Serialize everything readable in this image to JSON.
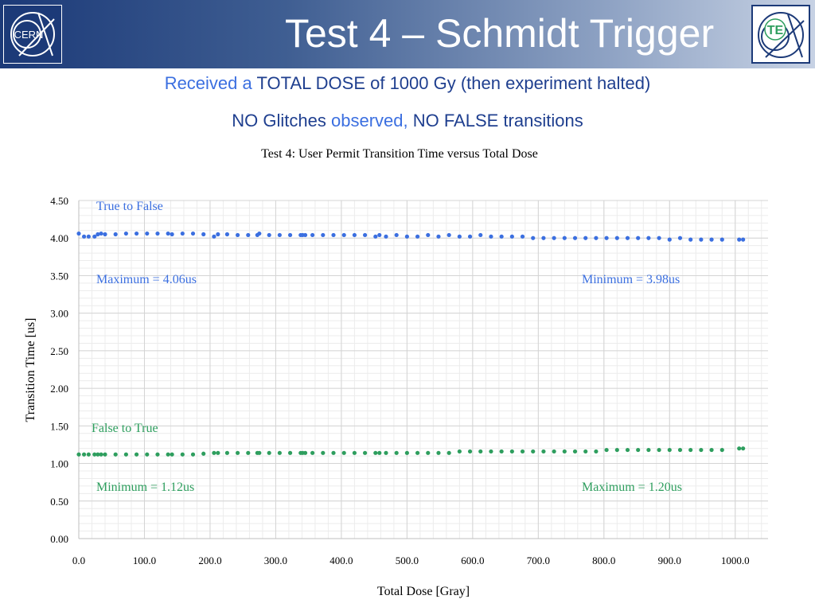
{
  "slide": {
    "title": "Test 4 – Schmidt Trigger",
    "line1": {
      "accent": "Received a",
      "rest": " TOTAL DOSE of 1000 Gy (then experiment halted)"
    },
    "line2": {
      "part1": "NO Glitches ",
      "accent": "observed,",
      "part2": " NO FALSE transitions"
    },
    "logos": {
      "left": "CERN",
      "right": "TE"
    }
  },
  "colors": {
    "blue_series": "#3b6fe0",
    "green_series": "#2e9e5e",
    "title_text": "#1f3f8f",
    "accent_text": "#3b6fe0"
  },
  "chart_data": {
    "type": "scatter",
    "title": "Test 4: User Permit Transition Time versus Total Dose",
    "xlabel": "Total Dose [Gray]",
    "ylabel": "Transition Time [us]",
    "xlim": [
      0,
      1050
    ],
    "ylim": [
      0,
      4.5
    ],
    "xticks": [
      "0.0",
      "100.0",
      "200.0",
      "300.0",
      "400.0",
      "500.0",
      "600.0",
      "700.0",
      "800.0",
      "900.0",
      "1000.0"
    ],
    "yticks": [
      "0.00",
      "0.50",
      "1.00",
      "1.50",
      "2.00",
      "2.50",
      "3.00",
      "3.50",
      "4.00",
      "4.50"
    ],
    "grid": true,
    "series": [
      {
        "name": "True to False",
        "color": "#3b6fe0",
        "x": [
          0,
          8,
          15,
          24,
          29,
          34,
          40,
          56,
          72,
          88,
          104,
          120,
          136,
          142,
          158,
          174,
          190,
          206,
          212,
          226,
          242,
          258,
          272,
          275,
          290,
          306,
          322,
          338,
          341,
          345,
          356,
          372,
          388,
          404,
          420,
          436,
          452,
          458,
          468,
          484,
          500,
          516,
          532,
          548,
          564,
          580,
          596,
          612,
          628,
          644,
          660,
          676,
          692,
          708,
          724,
          740,
          756,
          772,
          788,
          804,
          820,
          836,
          852,
          868,
          884,
          900,
          916,
          932,
          948,
          964,
          980,
          1006,
          1012
        ],
        "y": [
          4.06,
          4.02,
          4.02,
          4.02,
          4.05,
          4.06,
          4.05,
          4.05,
          4.06,
          4.06,
          4.06,
          4.06,
          4.06,
          4.05,
          4.06,
          4.06,
          4.05,
          4.02,
          4.05,
          4.05,
          4.04,
          4.04,
          4.04,
          4.06,
          4.04,
          4.04,
          4.04,
          4.04,
          4.04,
          4.04,
          4.04,
          4.04,
          4.04,
          4.04,
          4.04,
          4.04,
          4.02,
          4.04,
          4.02,
          4.04,
          4.02,
          4.02,
          4.04,
          4.02,
          4.04,
          4.02,
          4.02,
          4.04,
          4.02,
          4.02,
          4.02,
          4.02,
          4.0,
          4.0,
          4.0,
          4.0,
          4.0,
          4.0,
          4.0,
          4.0,
          4.0,
          4.0,
          4.0,
          4.0,
          4.0,
          3.98,
          4.0,
          3.98,
          3.98,
          3.98,
          3.98,
          3.98,
          3.98
        ]
      },
      {
        "name": "False to True",
        "color": "#2e9e5e",
        "x": [
          0,
          8,
          15,
          24,
          29,
          34,
          40,
          56,
          72,
          88,
          104,
          120,
          136,
          142,
          158,
          174,
          190,
          206,
          212,
          226,
          242,
          258,
          272,
          275,
          290,
          306,
          322,
          338,
          341,
          345,
          356,
          372,
          388,
          404,
          420,
          436,
          452,
          458,
          468,
          484,
          500,
          516,
          532,
          548,
          564,
          580,
          596,
          612,
          628,
          644,
          660,
          676,
          692,
          708,
          724,
          740,
          756,
          772,
          788,
          804,
          820,
          836,
          852,
          868,
          884,
          900,
          916,
          932,
          948,
          964,
          980,
          1006,
          1012
        ],
        "y": [
          1.12,
          1.12,
          1.12,
          1.12,
          1.12,
          1.12,
          1.12,
          1.12,
          1.12,
          1.12,
          1.12,
          1.12,
          1.12,
          1.12,
          1.12,
          1.12,
          1.13,
          1.14,
          1.14,
          1.14,
          1.14,
          1.14,
          1.14,
          1.14,
          1.14,
          1.14,
          1.14,
          1.14,
          1.14,
          1.14,
          1.14,
          1.14,
          1.14,
          1.14,
          1.14,
          1.14,
          1.14,
          1.14,
          1.14,
          1.14,
          1.14,
          1.14,
          1.14,
          1.14,
          1.14,
          1.16,
          1.16,
          1.16,
          1.16,
          1.16,
          1.16,
          1.16,
          1.16,
          1.16,
          1.16,
          1.16,
          1.16,
          1.16,
          1.16,
          1.18,
          1.18,
          1.18,
          1.18,
          1.18,
          1.18,
          1.18,
          1.18,
          1.18,
          1.18,
          1.18,
          1.18,
          1.2,
          1.2
        ]
      }
    ],
    "annotations": {
      "blue_max": "Maximum = 4.06us",
      "blue_min": "Minimum = 3.98us",
      "green_min": "Minimum = 1.12us",
      "green_max": "Maximum = 1.20us"
    }
  }
}
